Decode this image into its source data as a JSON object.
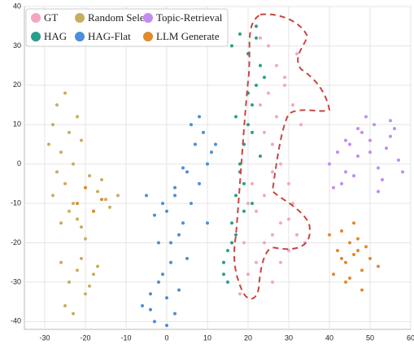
{
  "chart_data": {
    "type": "scatter",
    "xlim": [
      -35,
      60
    ],
    "xticks": [
      -30,
      -20,
      -10,
      0,
      10,
      20,
      30,
      40,
      50,
      60
    ],
    "ylim": [
      -42,
      40
    ],
    "yticks": [
      -40,
      -30,
      -20,
      -10,
      0,
      10,
      20,
      30,
      40
    ],
    "grid": true,
    "legend": "upper left",
    "series": [
      {
        "name": "GT",
        "color": "#f2a7bf",
        "x": [
          18,
          20,
          22,
          24,
          26,
          28,
          30,
          25,
          27,
          29,
          31,
          33,
          23,
          26,
          28,
          30,
          32,
          20,
          22,
          24,
          26,
          28,
          30,
          32,
          19,
          21,
          23,
          25,
          27,
          29,
          31,
          34,
          24,
          26
        ],
        "values": [
          -33,
          -28,
          -25,
          -20,
          -18,
          -15,
          -22,
          30,
          25,
          20,
          15,
          10,
          32,
          5,
          0,
          -5,
          28,
          -10,
          -12,
          -8,
          -30,
          -25,
          -14,
          -18,
          -20,
          -5,
          15,
          18,
          12,
          22,
          -10,
          -20,
          8,
          -2
        ]
      },
      {
        "name": "Random Select",
        "color": "#c9ad5f",
        "x": [
          -28,
          -27,
          -25,
          -24,
          -22,
          -26,
          -29,
          -23,
          -21,
          -27,
          -28,
          -25,
          -23,
          -20,
          -18,
          -15,
          -22,
          -19,
          -17,
          -14,
          -26,
          -21,
          -16,
          -24,
          -12,
          -20,
          -26,
          -24,
          -22,
          -20,
          -18,
          -25,
          -21,
          -23,
          -19,
          -17
        ],
        "values": [
          10,
          15,
          18,
          8,
          12,
          3,
          5,
          0,
          6,
          -2,
          -8,
          -5,
          -10,
          -6,
          -12,
          -9,
          -14,
          -3,
          -7,
          -11,
          -15,
          -16,
          -4,
          -12,
          -8,
          -19,
          -25,
          -30,
          -27,
          -33,
          -28,
          -36,
          -24,
          -38,
          -31,
          -26
        ]
      },
      {
        "name": "Topic-Retrieval",
        "color": "#c28cf2",
        "x": [
          40,
          42,
          44,
          45,
          47,
          48,
          50,
          51,
          52,
          54,
          55,
          57,
          43,
          46,
          49,
          53,
          56,
          58,
          41,
          50,
          52,
          47,
          44,
          55
        ],
        "values": [
          0,
          3,
          -2,
          5,
          2,
          8,
          6,
          10,
          -1,
          4,
          7,
          1,
          -5,
          -3,
          12,
          -4,
          9,
          -2,
          -6,
          3,
          -7,
          9,
          6,
          11
        ]
      },
      {
        "name": "HAG",
        "color": "#2a9d8c",
        "x": [
          14,
          15,
          16,
          17,
          18,
          19,
          20,
          21,
          22,
          23,
          16,
          18,
          20,
          22,
          24,
          15,
          17,
          19,
          21,
          17,
          19,
          23,
          14,
          20,
          18,
          22,
          16,
          21
        ],
        "values": [
          -28,
          -22,
          -15,
          -8,
          0,
          5,
          10,
          15,
          20,
          25,
          30,
          33,
          28,
          35,
          22,
          -30,
          -18,
          -5,
          8,
          12,
          -12,
          2,
          -25,
          18,
          -2,
          32,
          -20,
          -10
        ]
      },
      {
        "name": "HAG-Flat",
        "color": "#4a8fd8",
        "x": [
          -6,
          -4,
          -2,
          0,
          2,
          -3,
          -1,
          1,
          3,
          5,
          0,
          2,
          4,
          6,
          8,
          10,
          7,
          9,
          11,
          5,
          3,
          -1,
          -5,
          1,
          -3,
          6,
          8,
          4,
          12,
          10,
          -2,
          0,
          -4,
          2
        ],
        "values": [
          -36,
          -33,
          -30,
          -34,
          -38,
          -40,
          -28,
          -25,
          -32,
          -24,
          -12,
          -8,
          -15,
          -10,
          -5,
          0,
          5,
          8,
          3,
          -2,
          -18,
          -10,
          -8,
          -20,
          -13,
          10,
          12,
          -1,
          5,
          -15,
          -20,
          -41,
          -37,
          -6
        ]
      },
      {
        "name": "LLM Generate",
        "color": "#e08a2e",
        "x": [
          40,
          42,
          44,
          45,
          46,
          47,
          48,
          43,
          41,
          50,
          49,
          44,
          46,
          52,
          45,
          47,
          43,
          48,
          -22,
          -18,
          -20,
          -16
        ],
        "values": [
          -18,
          -22,
          -25,
          -20,
          -23,
          -19,
          -27,
          -17,
          -28,
          -24,
          -21,
          -30,
          -15,
          -26,
          -29,
          -22,
          -24,
          -32,
          -10,
          -12,
          -6,
          -9
        ]
      }
    ]
  }
}
